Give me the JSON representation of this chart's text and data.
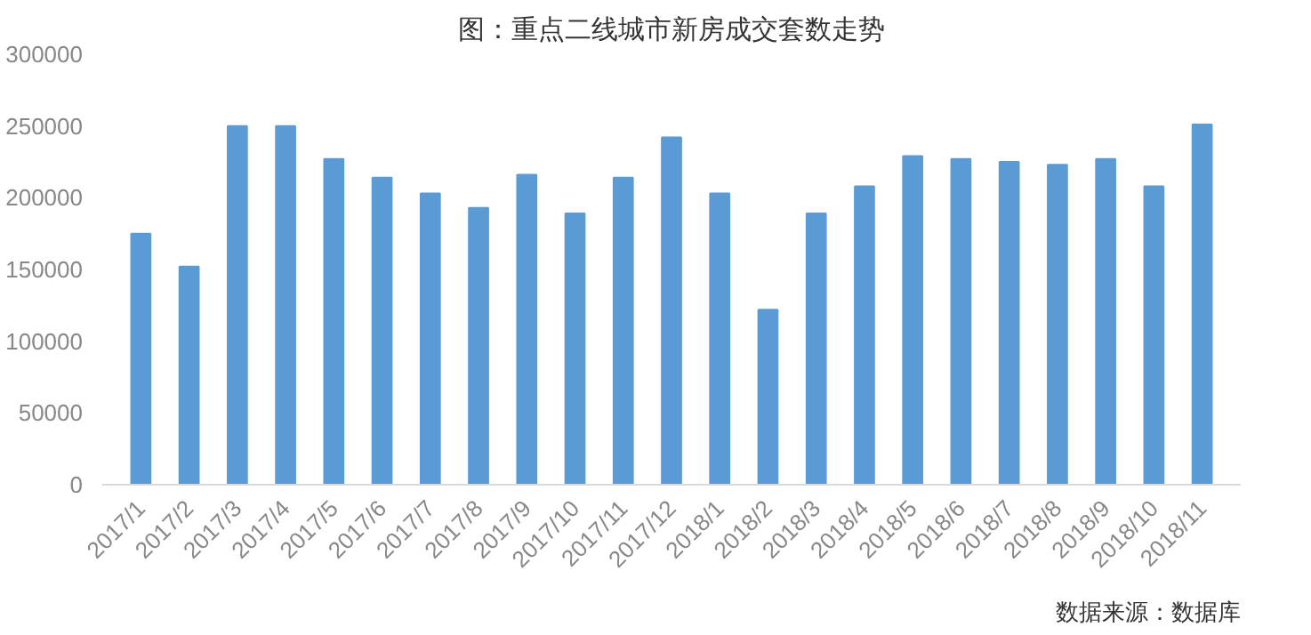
{
  "chart_data": {
    "type": "bar",
    "title": "图：重点二线城市新房成交套数走势",
    "categories": [
      "2017/1",
      "2017/2",
      "2017/3",
      "2017/4",
      "2017/5",
      "2017/6",
      "2017/7",
      "2017/8",
      "2017/9",
      "2017/10",
      "2017/11",
      "2017/12",
      "2018/1",
      "2018/2",
      "2018/3",
      "2018/4",
      "2018/5",
      "2018/6",
      "2018/7",
      "2018/8",
      "2018/9",
      "2018/10",
      "2018/11"
    ],
    "values": [
      175000,
      152000,
      250000,
      250000,
      227000,
      214000,
      203000,
      193000,
      216000,
      189000,
      214000,
      242000,
      203000,
      122000,
      189000,
      208000,
      229000,
      227000,
      225000,
      223000,
      227000,
      208000,
      251000
    ],
    "color": "#5b9bd5",
    "ylim": [
      0,
      300000
    ],
    "yticks": [
      0,
      50000,
      100000,
      150000,
      200000,
      250000,
      300000
    ],
    "grid": false,
    "annotations": [
      "数据来源：数据库"
    ]
  }
}
